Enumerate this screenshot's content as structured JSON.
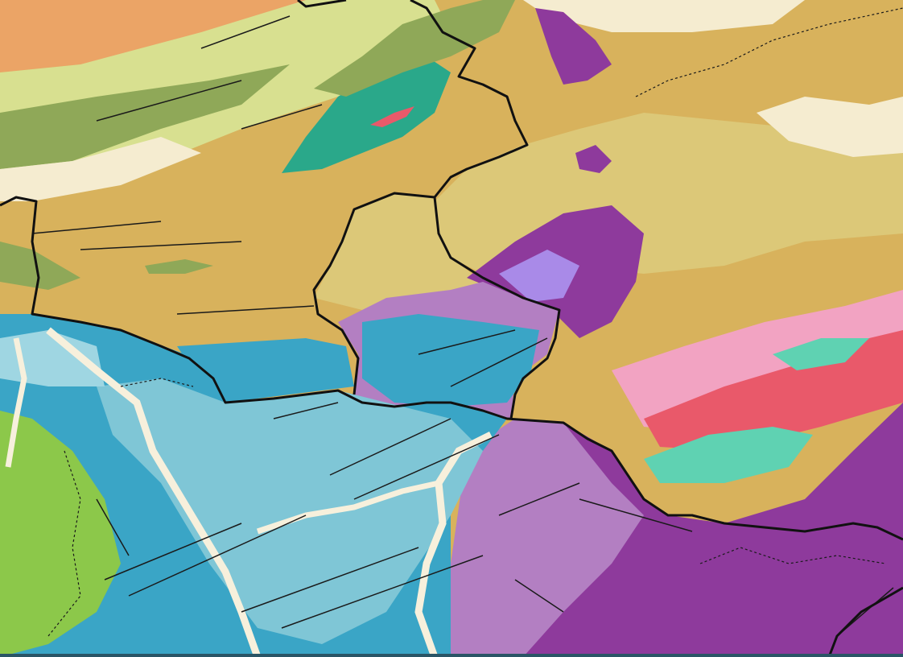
{
  "map": {
    "type": "geological map",
    "colors": {
      "light_blue": "#7fc6d6",
      "blue": "#3aa5c6",
      "pale_blue": "#9fd6e2",
      "purple": "#8e3a9c",
      "lavender": "#b37fc2",
      "violet_light": "#a98ae8",
      "tan": "#d8b25c",
      "khaki": "#dcc878",
      "orange": "#eba466",
      "yellow_green": "#d8e090",
      "olive": "#8fa858",
      "green": "#8cc84a",
      "dark_teal": "#2aa88a",
      "salmon_red": "#e9596a",
      "teal": "#5fd2b2",
      "pink": "#f2a3c2",
      "cream": "#f5ecd0",
      "river": "#f7f0dc",
      "boundary": "#111111",
      "fault": "#1a1a1a"
    }
  }
}
